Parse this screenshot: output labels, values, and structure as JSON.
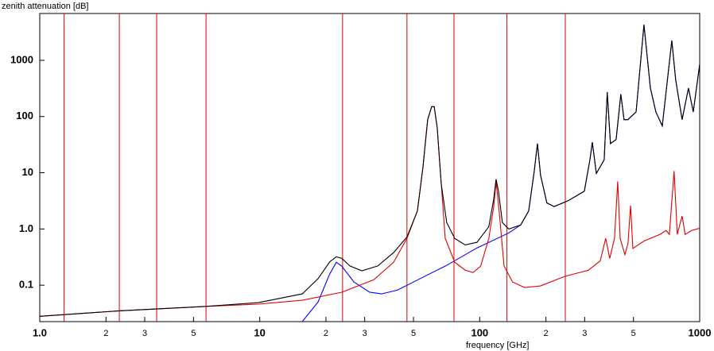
{
  "chart_data": {
    "type": "line",
    "y_label": "zenith attenuation [dB]",
    "x_label": "frequency [GHz]",
    "xscale": "log",
    "yscale": "log",
    "xlim": [
      1,
      1000
    ],
    "ylim": [
      0.0225,
      6800
    ],
    "xticks": [
      {
        "value": 1,
        "label": "1.0"
      },
      {
        "value": 2,
        "label": "2"
      },
      {
        "value": 3,
        "label": "3"
      },
      {
        "value": 5,
        "label": "5"
      },
      10,
      {
        "value": 20,
        "label": "2"
      },
      {
        "value": 30,
        "label": "3"
      },
      {
        "value": 50,
        "label": "5"
      },
      100,
      {
        "value": 200,
        "label": "2"
      },
      {
        "value": 300,
        "label": "3"
      },
      {
        "value": 500,
        "label": "5"
      },
      1000
    ],
    "yticks": [
      0.1,
      {
        "value": 1,
        "label": "1.0"
      },
      10,
      100,
      1000
    ],
    "vlines": {
      "color": "#e00000",
      "x": [
        1.29,
        2.3,
        3.4,
        5.7,
        23.8,
        46.7,
        76.4,
        133,
        245
      ]
    },
    "series": [
      {
        "color": "#0000ff",
        "x": [
          15.6,
          18.4,
          20.8,
          22.3,
          23.6,
          26.8,
          31.6,
          35.8,
          42.3,
          59,
          69.7,
          97.2,
          135.6,
          153.6,
          167,
          177,
          183,
          189,
          202,
          218,
          253,
          299,
          317,
          325,
          339,
          368,
          380,
          393,
          417,
          438,
          453,
          472,
          514,
          558,
          597,
          632,
          676,
          747,
          778,
          832,
          889,
          935,
          1000
        ],
        "values": [
          0.0225,
          0.05,
          0.158,
          0.256,
          0.218,
          0.114,
          0.075,
          0.07,
          0.082,
          0.158,
          0.218,
          0.46,
          0.85,
          1.18,
          2.1,
          10.7,
          33,
          9.1,
          2.9,
          2.5,
          3.2,
          4.7,
          17,
          35,
          9.7,
          17,
          272,
          33,
          39,
          250,
          88,
          88,
          121,
          4300,
          320,
          121,
          68,
          2250,
          445,
          88,
          320,
          121,
          850
        ]
      },
      {
        "color": "#e00000",
        "x": [
          1,
          2.3,
          5.7,
          9.86,
          15.6,
          23.6,
          33,
          40.6,
          46.7,
          52.1,
          55.2,
          58,
          60.5,
          62.1,
          64.1,
          69.7,
          77,
          85.9,
          93.3,
          101,
          110,
          115.8,
          118.7,
          123,
          129,
          141,
          160,
          189,
          243,
          312,
          353,
          374,
          390,
          410,
          424,
          435,
          457,
          472,
          485,
          497,
          558,
          659,
          704,
          728,
          765,
          791,
          832,
          859,
          919,
          1000
        ],
        "values": [
          0.028,
          0.035,
          0.042,
          0.046,
          0.054,
          0.075,
          0.125,
          0.256,
          0.68,
          2.1,
          12.5,
          88,
          150,
          150,
          63,
          0.68,
          0.256,
          0.185,
          0.168,
          0.218,
          0.68,
          2.5,
          7,
          1.8,
          0.22,
          0.114,
          0.091,
          0.097,
          0.143,
          0.185,
          0.27,
          0.68,
          0.3,
          0.68,
          7,
          0.68,
          0.35,
          0.55,
          2.6,
          0.45,
          0.61,
          0.8,
          0.94,
          0.8,
          10.7,
          0.8,
          1.7,
          0.8,
          0.94,
          1.03
        ]
      },
      {
        "color": "#000000",
        "x": [
          1,
          2.3,
          5.7,
          9.86,
          15.6,
          18.4,
          20.8,
          22.3,
          23.6,
          25.7,
          29.1,
          34.4,
          40.6,
          46.7,
          52.1,
          55.2,
          58,
          60.5,
          62.1,
          64.1,
          66.8,
          70.8,
          77,
          85.9,
          97.2,
          110,
          115.8,
          118.7,
          121.7,
          126.8,
          135.6,
          153.6,
          167,
          177,
          183,
          189,
          202,
          218,
          253,
          299,
          317,
          325,
          339,
          368,
          380,
          393,
          417,
          438,
          453,
          472,
          514,
          558,
          597,
          632,
          676,
          747,
          778,
          832,
          889,
          935,
          1000
        ],
        "values": [
          0.028,
          0.035,
          0.042,
          0.049,
          0.07,
          0.13,
          0.26,
          0.32,
          0.3,
          0.22,
          0.18,
          0.22,
          0.38,
          0.72,
          2.1,
          12.5,
          88,
          150,
          150,
          63,
          6.5,
          1.3,
          0.68,
          0.52,
          0.58,
          1.1,
          3.4,
          7.7,
          4.7,
          1.3,
          1.0,
          1.18,
          2.1,
          10.7,
          33,
          9.1,
          2.9,
          2.5,
          3.2,
          4.7,
          17,
          35,
          9.7,
          17,
          272,
          33,
          39,
          250,
          88,
          88,
          121,
          4300,
          320,
          121,
          68,
          2250,
          445,
          88,
          320,
          121,
          850
        ]
      }
    ]
  }
}
